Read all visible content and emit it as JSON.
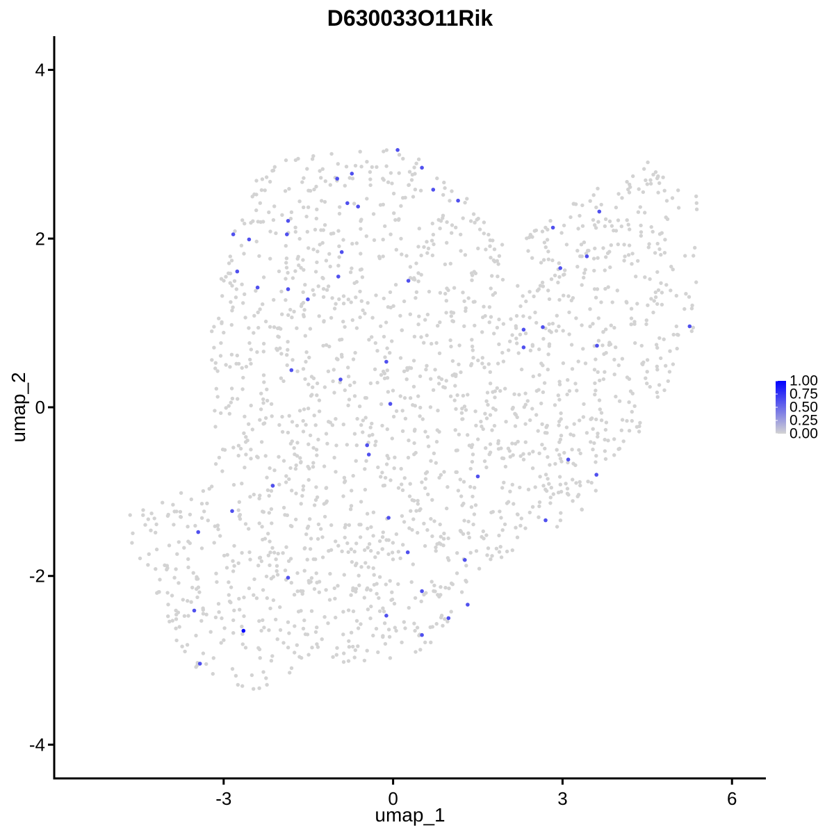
{
  "chart_data": {
    "type": "scatter",
    "title": "D630033O11Rik",
    "xlabel": "umap_1",
    "ylabel": "umap_2",
    "xlim": [
      -6.0,
      6.6
    ],
    "ylim": [
      -4.4,
      4.4
    ],
    "x_ticks": [
      -3,
      0,
      3,
      6
    ],
    "x_tick_labels": [
      "-3",
      "0",
      "3",
      "6"
    ],
    "y_ticks": [
      -4,
      -2,
      0,
      2,
      4
    ],
    "y_tick_labels": [
      "-4",
      "-2",
      "0",
      "2",
      "4"
    ],
    "grid": false,
    "legend_placement": "right",
    "color_scale": {
      "low_color": "#d3d3d3",
      "high_color": "#0000ff",
      "min": 0.0,
      "max": 1.0,
      "breaks": [
        1.0,
        0.75,
        0.5,
        0.25,
        0.0
      ],
      "break_labels": [
        "1.00",
        "0.75",
        "0.50",
        "0.25",
        "0.00"
      ]
    },
    "background_points": {
      "value": 0.0,
      "count_approx": 1900,
      "outline": [
        [
          -4.75,
          -1.3
        ],
        [
          -4.5,
          -1.1
        ],
        [
          -3.2,
          -0.9
        ],
        [
          -3.3,
          0.6
        ],
        [
          -3.2,
          1.0
        ],
        [
          -2.9,
          2.0
        ],
        [
          -2.35,
          2.85
        ],
        [
          -1.5,
          3.0
        ],
        [
          -0.5,
          3.05
        ],
        [
          0.2,
          3.15
        ],
        [
          0.6,
          2.85
        ],
        [
          1.3,
          2.5
        ],
        [
          1.8,
          2.05
        ],
        [
          2.35,
          2.0
        ],
        [
          2.95,
          2.35
        ],
        [
          3.5,
          2.6
        ],
        [
          4.3,
          2.75
        ],
        [
          4.55,
          2.98
        ],
        [
          5.4,
          2.55
        ],
        [
          5.4,
          1.8
        ],
        [
          5.35,
          1.0
        ],
        [
          5.0,
          0.4
        ],
        [
          4.6,
          -0.2
        ],
        [
          3.9,
          -0.6
        ],
        [
          3.45,
          -1.2
        ],
        [
          2.7,
          -1.5
        ],
        [
          2.0,
          -1.75
        ],
        [
          1.4,
          -2.05
        ],
        [
          1.0,
          -2.55
        ],
        [
          0.6,
          -2.95
        ],
        [
          -0.1,
          -3.0
        ],
        [
          -1.0,
          -3.05
        ],
        [
          -1.85,
          -3.2
        ],
        [
          -2.1,
          -3.45
        ],
        [
          -2.5,
          -3.5
        ],
        [
          -2.8,
          -3.3
        ],
        [
          -3.5,
          -3.1
        ],
        [
          -3.9,
          -2.7
        ],
        [
          -4.2,
          -2.3
        ],
        [
          -4.45,
          -1.9
        ],
        [
          -4.7,
          -1.55
        ]
      ]
    },
    "series": [
      {
        "values": [
          {
            "x": 0.08,
            "y": 3.05,
            "v": 0.62
          },
          {
            "x": 0.51,
            "y": 2.84,
            "v": 0.62
          },
          {
            "x": -0.99,
            "y": 2.71,
            "v": 0.62
          },
          {
            "x": -0.73,
            "y": 2.77,
            "v": 0.62
          },
          {
            "x": 0.71,
            "y": 2.58,
            "v": 0.62
          },
          {
            "x": 1.15,
            "y": 2.45,
            "v": 0.62
          },
          {
            "x": -0.81,
            "y": 2.42,
            "v": 0.62
          },
          {
            "x": -0.62,
            "y": 2.38,
            "v": 0.62
          },
          {
            "x": -1.86,
            "y": 2.21,
            "v": 0.62
          },
          {
            "x": -2.83,
            "y": 2.05,
            "v": 0.62
          },
          {
            "x": -2.55,
            "y": 1.99,
            "v": 0.62
          },
          {
            "x": -1.88,
            "y": 2.05,
            "v": 0.62
          },
          {
            "x": 2.83,
            "y": 2.13,
            "v": 0.62
          },
          {
            "x": 3.65,
            "y": 2.32,
            "v": 0.62
          },
          {
            "x": -0.91,
            "y": 1.84,
            "v": 0.62
          },
          {
            "x": 3.43,
            "y": 1.79,
            "v": 0.62
          },
          {
            "x": 2.96,
            "y": 1.65,
            "v": 0.62
          },
          {
            "x": -2.76,
            "y": 1.61,
            "v": 0.62
          },
          {
            "x": -0.97,
            "y": 1.55,
            "v": 0.62
          },
          {
            "x": 0.27,
            "y": 1.5,
            "v": 0.62
          },
          {
            "x": -2.4,
            "y": 1.42,
            "v": 0.62
          },
          {
            "x": -1.86,
            "y": 1.4,
            "v": 0.62
          },
          {
            "x": -1.51,
            "y": 1.28,
            "v": 0.62
          },
          {
            "x": 2.31,
            "y": 0.92,
            "v": 0.62
          },
          {
            "x": 2.65,
            "y": 0.95,
            "v": 0.62
          },
          {
            "x": 5.25,
            "y": 0.96,
            "v": 0.62
          },
          {
            "x": 2.31,
            "y": 0.71,
            "v": 0.62
          },
          {
            "x": 3.61,
            "y": 0.73,
            "v": 0.62
          },
          {
            "x": -0.12,
            "y": 0.54,
            "v": 0.62
          },
          {
            "x": -1.8,
            "y": 0.44,
            "v": 0.62
          },
          {
            "x": -0.93,
            "y": 0.33,
            "v": 0.62
          },
          {
            "x": -0.05,
            "y": 0.04,
            "v": 0.62
          },
          {
            "x": -0.46,
            "y": -0.45,
            "v": 0.62
          },
          {
            "x": -0.43,
            "y": -0.56,
            "v": 0.62
          },
          {
            "x": 3.1,
            "y": -0.62,
            "v": 0.62
          },
          {
            "x": 1.5,
            "y": -0.82,
            "v": 0.62
          },
          {
            "x": 3.6,
            "y": -0.8,
            "v": 0.62
          },
          {
            "x": -2.13,
            "y": -0.93,
            "v": 0.62
          },
          {
            "x": -2.85,
            "y": -1.23,
            "v": 0.62
          },
          {
            "x": -0.08,
            "y": -1.31,
            "v": 0.62
          },
          {
            "x": 2.7,
            "y": -1.34,
            "v": 0.62
          },
          {
            "x": -3.45,
            "y": -1.48,
            "v": 0.62
          },
          {
            "x": 0.26,
            "y": -1.72,
            "v": 0.62
          },
          {
            "x": 1.27,
            "y": -1.81,
            "v": 0.62
          },
          {
            "x": -1.86,
            "y": -2.02,
            "v": 0.62
          },
          {
            "x": 0.51,
            "y": -2.18,
            "v": 0.62
          },
          {
            "x": 1.32,
            "y": -2.34,
            "v": 0.62
          },
          {
            "x": -3.52,
            "y": -2.41,
            "v": 0.62
          },
          {
            "x": -0.12,
            "y": -2.47,
            "v": 0.62
          },
          {
            "x": 0.98,
            "y": -2.5,
            "v": 0.62
          },
          {
            "x": -2.65,
            "y": -2.65,
            "v": 1.0
          },
          {
            "x": 0.51,
            "y": -2.7,
            "v": 0.62
          },
          {
            "x": -3.42,
            "y": -3.04,
            "v": 0.62
          }
        ]
      }
    ]
  }
}
